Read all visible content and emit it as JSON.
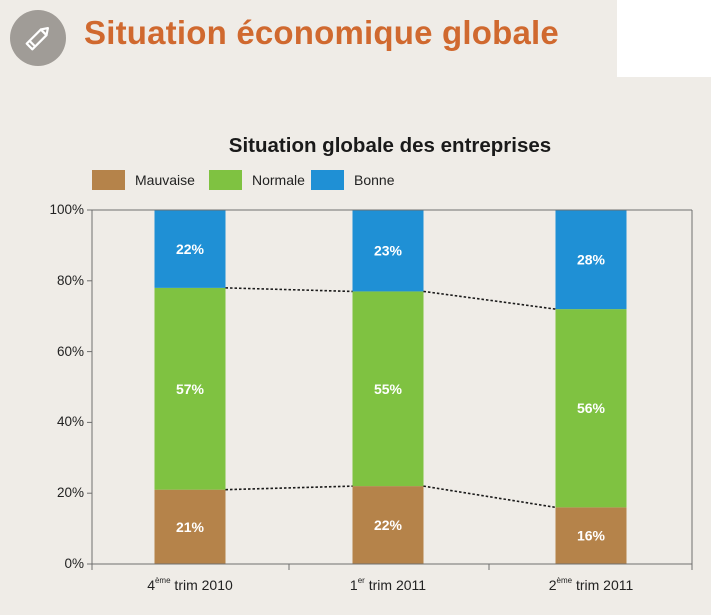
{
  "header": {
    "title": "Situation économique globale",
    "icon": "pencil-icon"
  },
  "chart_data": {
    "type": "bar",
    "stacked": true,
    "title": "Situation globale des entreprises",
    "categories": [
      {
        "sup": "ème",
        "main": "4",
        "rest": " trim 2010"
      },
      {
        "sup": "er",
        "main": "1",
        "rest": " trim 2011"
      },
      {
        "sup": "ème",
        "main": "2",
        "rest": " trim 2011"
      }
    ],
    "series": [
      {
        "name": "Mauvaise",
        "color": "#b5834a",
        "values": [
          21,
          22,
          16
        ],
        "labels": [
          "21%",
          "22%",
          "16%"
        ]
      },
      {
        "name": "Normale",
        "color": "#7fc241",
        "values": [
          57,
          55,
          56
        ],
        "labels": [
          "57%",
          "55%",
          "56%"
        ]
      },
      {
        "name": "Bonne",
        "color": "#1f90d5",
        "values": [
          22,
          23,
          28
        ],
        "labels": [
          "22%",
          "23%",
          "28%"
        ]
      }
    ],
    "yticks": [
      "0%",
      "20%",
      "40%",
      "60%",
      "80%",
      "100%"
    ],
    "ylim": [
      0,
      100
    ],
    "legend_position": "top-left",
    "grid": false,
    "connector_lines": "dotted lines join the series boundaries between bars"
  }
}
